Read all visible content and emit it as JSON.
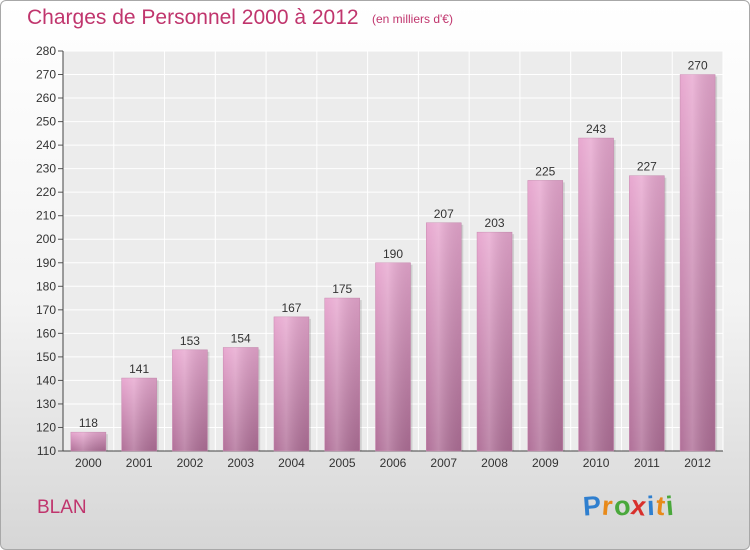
{
  "title": "Charges de Personnel 2000 à 2012",
  "subtitle": "(en milliers d'€)",
  "commune": "BLAN",
  "logo": {
    "letters": [
      "P",
      "r",
      "o",
      "x",
      "i",
      "t",
      "i"
    ],
    "colors": [
      "#2f7fcf",
      "#e88a1a",
      "#4aa83c",
      "#d8302c",
      "#2f7fcf",
      "#e88a1a",
      "#4aa83c"
    ]
  },
  "colors": {
    "bar_top": "#e8a8d0",
    "bar_bottom": "#b07098",
    "text": "#c0356d"
  },
  "chart_data": {
    "type": "bar",
    "categories": [
      "2000",
      "2001",
      "2002",
      "2003",
      "2004",
      "2005",
      "2006",
      "2007",
      "2008",
      "2009",
      "2010",
      "2011",
      "2012"
    ],
    "values": [
      118,
      141,
      153,
      154,
      167,
      175,
      190,
      207,
      203,
      225,
      243,
      227,
      270
    ],
    "ylim": [
      110,
      280
    ],
    "yticks": [
      110,
      120,
      130,
      140,
      150,
      160,
      170,
      180,
      190,
      200,
      210,
      220,
      230,
      240,
      250,
      260,
      270,
      280
    ],
    "grid": true
  }
}
